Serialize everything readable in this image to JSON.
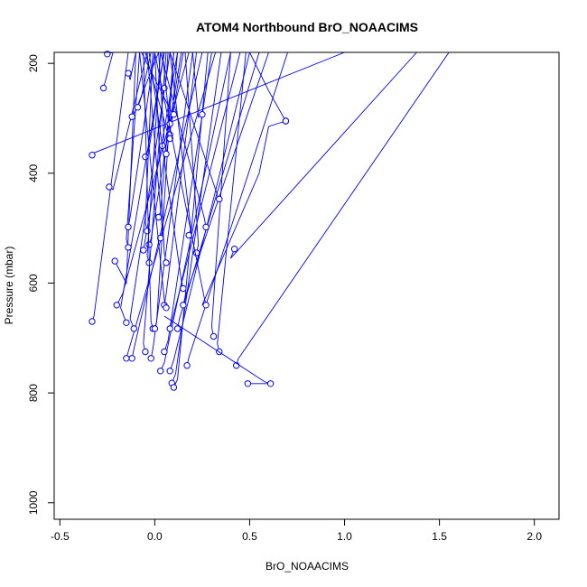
{
  "chart_data": {
    "type": "line",
    "title": "ATOM4 Northbound BrO_NOAACIMS",
    "xlabel": "BrO_NOAACIMS",
    "ylabel": "Pressure (mbar)",
    "xlim": [
      -0.53,
      2.13
    ],
    "ylim": [
      1030,
      180
    ],
    "y_reversed": true,
    "grid": false,
    "x_ticks": [
      -0.5,
      0.0,
      0.5,
      1.0,
      1.5,
      2.0
    ],
    "x_tick_labels": [
      "-0.5",
      "0.0",
      "0.5",
      "1.0",
      "1.5",
      "2.0"
    ],
    "y_ticks": [
      200,
      400,
      600,
      800,
      1000
    ],
    "y_tick_labels": [
      "200",
      "400",
      "600",
      "800",
      "1000"
    ],
    "series_color": "#0000ff",
    "series": [
      {
        "points": [
          [
            -0.33,
            670
          ],
          [
            -0.32,
            660
          ],
          [
            -0.14,
            180
          ]
        ]
      },
      {
        "points": [
          [
            -0.33,
            367
          ],
          [
            -0.32,
            363
          ],
          [
            1.0,
            180
          ]
        ]
      },
      {
        "points": [
          [
            -0.25,
            183
          ],
          [
            -0.22,
            180
          ]
        ]
      },
      {
        "points": [
          [
            -0.27,
            245
          ],
          [
            -0.22,
            180
          ]
        ]
      },
      {
        "points": [
          [
            -0.24,
            425
          ],
          [
            -0.22,
            430
          ],
          [
            -0.04,
            180
          ]
        ]
      },
      {
        "points": [
          [
            -0.21,
            560
          ],
          [
            -0.15,
            600
          ],
          [
            -0.1,
            180
          ]
        ]
      },
      {
        "points": [
          [
            -0.2,
            640
          ],
          [
            -0.17,
            620
          ],
          [
            0.18,
            180
          ]
        ]
      },
      {
        "points": [
          [
            -0.15,
            672
          ],
          [
            -0.18,
            645
          ],
          [
            0.05,
            180
          ]
        ]
      },
      {
        "points": [
          [
            -0.15,
            737
          ],
          [
            -0.14,
            725
          ],
          [
            0.32,
            180
          ]
        ]
      },
      {
        "points": [
          [
            -0.12,
            737
          ],
          [
            -0.11,
            720
          ],
          [
            0.25,
            180
          ]
        ]
      },
      {
        "points": [
          [
            -0.11,
            683
          ],
          [
            -0.13,
            665
          ],
          [
            0.08,
            180
          ]
        ]
      },
      {
        "points": [
          [
            -0.14,
            535
          ],
          [
            -0.15,
            520
          ],
          [
            -0.08,
            180
          ]
        ]
      },
      {
        "points": [
          [
            -0.14,
            498
          ],
          [
            -0.13,
            480
          ],
          [
            0.0,
            180
          ]
        ]
      },
      {
        "points": [
          [
            -0.14,
            218
          ],
          [
            -0.13,
            230
          ],
          [
            -0.1,
            180
          ]
        ]
      },
      {
        "points": [
          [
            -0.12,
            297
          ],
          [
            -0.1,
            285
          ],
          [
            0.02,
            180
          ]
        ]
      },
      {
        "points": [
          [
            -0.09,
            280
          ],
          [
            -0.07,
            260
          ],
          [
            -0.02,
            180
          ]
        ]
      },
      {
        "points": [
          [
            -0.05,
            725
          ],
          [
            -0.06,
            710
          ],
          [
            0.06,
            180
          ]
        ]
      },
      {
        "points": [
          [
            -0.05,
            370
          ],
          [
            -0.03,
            355
          ],
          [
            0.05,
            180
          ]
        ]
      },
      {
        "points": [
          [
            -0.06,
            540
          ],
          [
            -0.05,
            520
          ],
          [
            0.12,
            180
          ]
        ]
      },
      {
        "points": [
          [
            -0.04,
            505
          ],
          [
            -0.05,
            490
          ],
          [
            -0.01,
            180
          ]
        ]
      },
      {
        "points": [
          [
            -0.03,
            530
          ],
          [
            -0.02,
            520
          ],
          [
            0.14,
            180
          ]
        ]
      },
      {
        "points": [
          [
            -0.03,
            563
          ],
          [
            -0.04,
            550
          ],
          [
            0.03,
            180
          ]
        ]
      },
      {
        "points": [
          [
            -0.02,
            737
          ],
          [
            -0.01,
            720
          ],
          [
            0.2,
            180
          ]
        ]
      },
      {
        "points": [
          [
            -0.01,
            683
          ],
          [
            -0.02,
            670
          ],
          [
            -0.06,
            180
          ]
        ]
      },
      {
        "points": [
          [
            0.0,
            683
          ],
          [
            0.01,
            670
          ],
          [
            0.1,
            180
          ]
        ]
      },
      {
        "points": [
          [
            0.02,
            480
          ],
          [
            0.03,
            470
          ],
          [
            0.1,
            180
          ]
        ]
      },
      {
        "points": [
          [
            0.03,
            518
          ],
          [
            0.04,
            505
          ],
          [
            -0.04,
            180
          ]
        ]
      },
      {
        "points": [
          [
            0.03,
            760
          ],
          [
            0.05,
            745
          ],
          [
            0.4,
            180
          ]
        ]
      },
      {
        "points": [
          [
            0.04,
            350
          ],
          [
            0.05,
            340
          ],
          [
            0.02,
            180
          ]
        ]
      },
      {
        "points": [
          [
            0.05,
            640
          ],
          [
            0.06,
            620
          ],
          [
            0.22,
            180
          ]
        ]
      },
      {
        "points": [
          [
            0.05,
            725
          ],
          [
            0.07,
            705
          ],
          [
            0.3,
            180
          ]
        ]
      },
      {
        "points": [
          [
            0.06,
            645
          ],
          [
            0.05,
            630
          ],
          [
            -0.08,
            180
          ]
        ]
      },
      {
        "points": [
          [
            0.06,
            365
          ],
          [
            0.07,
            345
          ],
          [
            0.15,
            180
          ]
        ]
      },
      {
        "points": [
          [
            0.05,
            245
          ],
          [
            0.06,
            230
          ],
          [
            0.07,
            180
          ]
        ]
      },
      {
        "points": [
          [
            0.06,
            563
          ],
          [
            0.05,
            545
          ],
          [
            0.0,
            180
          ]
        ]
      },
      {
        "points": [
          [
            0.08,
            330
          ],
          [
            0.08,
            315
          ],
          [
            0.04,
            180
          ]
        ]
      },
      {
        "points": [
          [
            0.08,
            310
          ],
          [
            0.09,
            300
          ],
          [
            0.12,
            180
          ]
        ]
      },
      {
        "points": [
          [
            0.08,
            337
          ],
          [
            0.07,
            330
          ],
          [
            -0.05,
            180
          ]
        ]
      },
      {
        "points": [
          [
            0.08,
            683
          ],
          [
            0.09,
            670
          ],
          [
            0.45,
            180
          ]
        ]
      },
      {
        "points": [
          [
            0.08,
            760
          ],
          [
            0.1,
            740
          ],
          [
            0.5,
            180
          ]
        ]
      },
      {
        "points": [
          [
            0.1,
            293
          ],
          [
            0.09,
            290
          ],
          [
            -0.07,
            180
          ]
        ]
      },
      {
        "points": [
          [
            0.09,
            782
          ],
          [
            0.11,
            765
          ],
          [
            0.35,
            180
          ]
        ]
      },
      {
        "points": [
          [
            0.1,
            790
          ],
          [
            0.12,
            775
          ],
          [
            0.28,
            180
          ]
        ]
      },
      {
        "points": [
          [
            0.12,
            683
          ],
          [
            0.13,
            665
          ],
          [
            0.55,
            180
          ]
        ]
      },
      {
        "points": [
          [
            0.15,
            610
          ],
          [
            0.14,
            595
          ],
          [
            -0.03,
            180
          ]
        ]
      },
      {
        "points": [
          [
            0.15,
            640
          ],
          [
            0.16,
            625
          ],
          [
            0.6,
            180
          ]
        ]
      },
      {
        "points": [
          [
            0.17,
            750
          ],
          [
            0.18,
            735
          ],
          [
            0.7,
            180
          ]
        ]
      },
      {
        "points": [
          [
            0.18,
            513
          ],
          [
            0.19,
            500
          ],
          [
            0.08,
            180
          ]
        ]
      },
      {
        "points": [
          [
            0.22,
            545
          ],
          [
            0.23,
            530
          ],
          [
            0.16,
            180
          ]
        ]
      },
      {
        "points": [
          [
            0.25,
            293
          ],
          [
            0.23,
            298
          ],
          [
            0.2,
            180
          ]
        ]
      },
      {
        "points": [
          [
            0.27,
            498
          ],
          [
            0.26,
            480
          ],
          [
            0.03,
            180
          ]
        ]
      },
      {
        "points": [
          [
            0.27,
            640
          ],
          [
            0.26,
            625
          ],
          [
            0.0,
            180
          ]
        ]
      },
      {
        "points": [
          [
            0.31,
            697
          ],
          [
            0.3,
            680
          ],
          [
            0.4,
            180
          ]
        ]
      },
      {
        "points": [
          [
            0.34,
            725
          ],
          [
            0.33,
            710
          ],
          [
            0.48,
            180
          ]
        ]
      },
      {
        "points": [
          [
            0.34,
            447
          ],
          [
            0.33,
            440
          ],
          [
            0.08,
            180
          ]
        ]
      },
      {
        "points": [
          [
            0.42,
            538
          ],
          [
            0.4,
            555
          ],
          [
            1.38,
            180
          ]
        ]
      },
      {
        "points": [
          [
            0.43,
            750
          ],
          [
            0.44,
            738
          ],
          [
            1.55,
            180
          ]
        ]
      },
      {
        "points": [
          [
            0.49,
            783
          ],
          [
            0.55,
            783
          ],
          [
            0.61,
            783
          ]
        ]
      },
      {
        "points": [
          [
            0.61,
            783
          ],
          [
            0.58,
            780
          ],
          [
            0.05,
            660
          ]
        ]
      },
      {
        "points": [
          [
            0.69,
            305
          ],
          [
            0.6,
            315
          ],
          [
            0.55,
            400
          ],
          [
            0.25,
            640
          ]
        ]
      },
      {
        "points": [
          [
            0.69,
            305
          ],
          [
            0.6,
            250
          ],
          [
            0.5,
            180
          ]
        ]
      }
    ]
  }
}
